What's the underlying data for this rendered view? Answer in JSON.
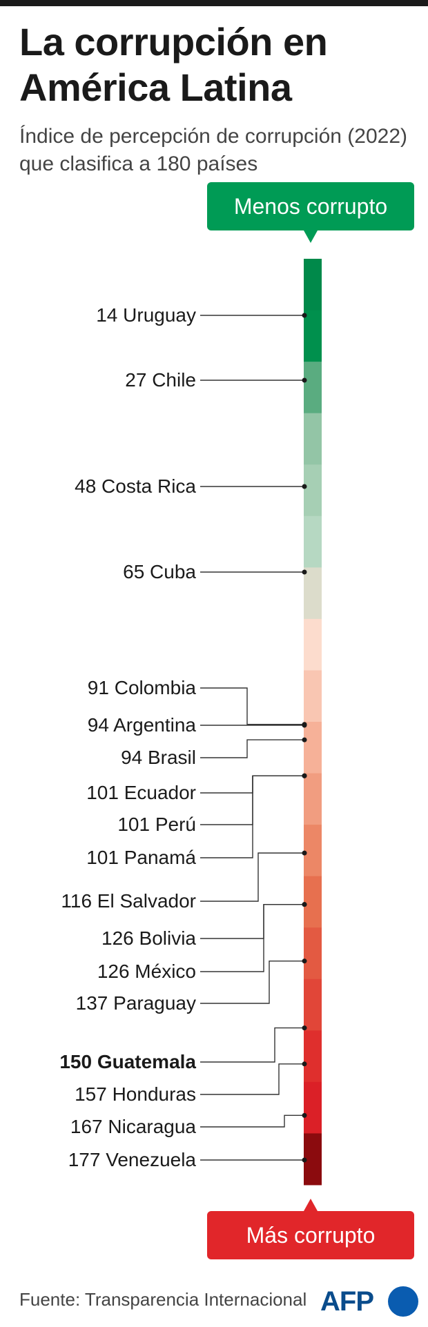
{
  "header": {
    "title": "La corrupción en América Latina",
    "subtitle": "Índice de percepción de corrupción (2022) que clasifica a 180 países"
  },
  "scale": {
    "top_label": "Menos corrupto",
    "bottom_label": "Más corrupto",
    "top_color": "#009b55",
    "bottom_color": "#e1262a"
  },
  "footer": {
    "source": "Fuente: Transparencia Internacional",
    "logo": "AFP"
  },
  "chart_data": {
    "type": "bar",
    "title": "La corrupción en América Latina",
    "subtitle": "Índice de percepción de corrupción (2022) que clasifica a 180 países",
    "ylim": [
      1,
      180
    ],
    "orientation": "vertical-ranking",
    "segment_colors": [
      "#00894a",
      "#00904d",
      "#5aac80",
      "#93c5a6",
      "#a6cfb4",
      "#b6d8c2",
      "#dcdccb",
      "#fcdccd",
      "#f9c6b2",
      "#f6b198",
      "#f19d80",
      "#ec8766",
      "#e7704f",
      "#e35a42",
      "#e14638",
      "#df2f2d",
      "#db2027",
      "#8b0b0e"
    ],
    "countries": [
      {
        "rank": 14,
        "name": "Uruguay",
        "label": "14 Uruguay",
        "highlight": false
      },
      {
        "rank": 27,
        "name": "Chile",
        "label": "27 Chile",
        "highlight": false
      },
      {
        "rank": 48,
        "name": "Costa Rica",
        "label": "48 Costa Rica",
        "highlight": false
      },
      {
        "rank": 65,
        "name": "Cuba",
        "label": "65 Cuba",
        "highlight": false
      },
      {
        "rank": 91,
        "name": "Colombia",
        "label": "91 Colombia",
        "highlight": false
      },
      {
        "rank": 94,
        "name": "Argentina",
        "label": "94 Argentina",
        "highlight": false
      },
      {
        "rank": 94,
        "name": "Brasil",
        "label": "94 Brasil",
        "highlight": false
      },
      {
        "rank": 101,
        "name": "Ecuador",
        "label": "101 Ecuador",
        "highlight": false
      },
      {
        "rank": 101,
        "name": "Perú",
        "label": "101 Perú",
        "highlight": false
      },
      {
        "rank": 101,
        "name": "Panamá",
        "label": "101 Panamá",
        "highlight": false
      },
      {
        "rank": 116,
        "name": "El Salvador",
        "label": "116 El Salvador",
        "highlight": false
      },
      {
        "rank": 126,
        "name": "Bolivia",
        "label": "126 Bolivia",
        "highlight": false
      },
      {
        "rank": 126,
        "name": "México",
        "label": "126 México",
        "highlight": false
      },
      {
        "rank": 137,
        "name": "Paraguay",
        "label": "137 Paraguay",
        "highlight": false
      },
      {
        "rank": 150,
        "name": "Guatemala",
        "label": "150 Guatemala",
        "highlight": true
      },
      {
        "rank": 157,
        "name": "Honduras",
        "label": "157 Honduras",
        "highlight": false
      },
      {
        "rank": 167,
        "name": "Nicaragua",
        "label": "167 Nicaragua",
        "highlight": false
      },
      {
        "rank": 177,
        "name": "Venezuela",
        "label": "177 Venezuela",
        "highlight": false
      }
    ]
  }
}
